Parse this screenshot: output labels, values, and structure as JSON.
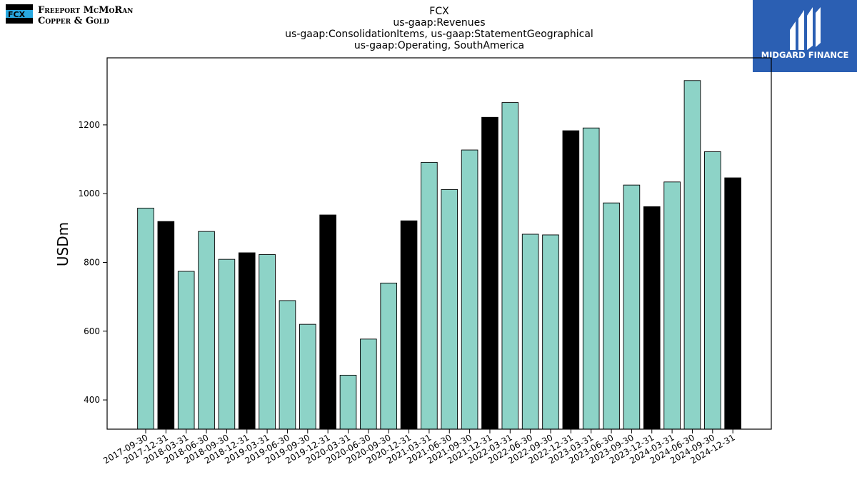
{
  "logos": {
    "company_line1": "Freeport McMoRan",
    "company_line2": "Copper & Gold",
    "company_mark": "FCX",
    "brand_name": "MIDGARD FINANCE"
  },
  "colors": {
    "bar_default": "#8dd3c7",
    "bar_year_end": "#000000",
    "bar_edge": "#000000",
    "midgard_bg": "#2b5fb3"
  },
  "chart_data": {
    "type": "bar",
    "title": [
      "FCX",
      "us-gaap:Revenues",
      "us-gaap:ConsolidationItems, us-gaap:StatementGeographical",
      "us-gaap:Operating, SouthAmerica"
    ],
    "xlabel": "",
    "ylabel": "USDm",
    "ylim": [
      315,
      1395
    ],
    "yticks": [
      400,
      600,
      800,
      1000,
      1200
    ],
    "grid": false,
    "categories": [
      "2017-09-30",
      "2017-12-31",
      "2018-03-31",
      "2018-06-30",
      "2018-09-30",
      "2018-12-31",
      "2019-03-31",
      "2019-06-30",
      "2019-09-30",
      "2019-12-31",
      "2020-03-31",
      "2020-06-30",
      "2020-09-30",
      "2020-12-31",
      "2021-03-31",
      "2021-06-30",
      "2021-09-30",
      "2021-12-31",
      "2022-03-31",
      "2022-06-30",
      "2022-09-30",
      "2022-12-31",
      "2023-03-31",
      "2023-06-30",
      "2023-09-30",
      "2023-12-31",
      "2024-03-31",
      "2024-06-30",
      "2024-09-30",
      "2024-12-31"
    ],
    "values": [
      958,
      919,
      774,
      890,
      809,
      828,
      823,
      689,
      620,
      938,
      472,
      577,
      740,
      921,
      1091,
      1012,
      1127,
      1222,
      1265,
      882,
      880,
      1183,
      1191,
      973,
      1025,
      962,
      1034,
      1329,
      1122,
      1046
    ],
    "highlight_year_end": [
      false,
      true,
      false,
      false,
      false,
      true,
      false,
      false,
      false,
      true,
      false,
      false,
      false,
      true,
      false,
      false,
      false,
      true,
      false,
      false,
      false,
      true,
      false,
      false,
      false,
      true,
      false,
      false,
      false,
      true
    ]
  }
}
